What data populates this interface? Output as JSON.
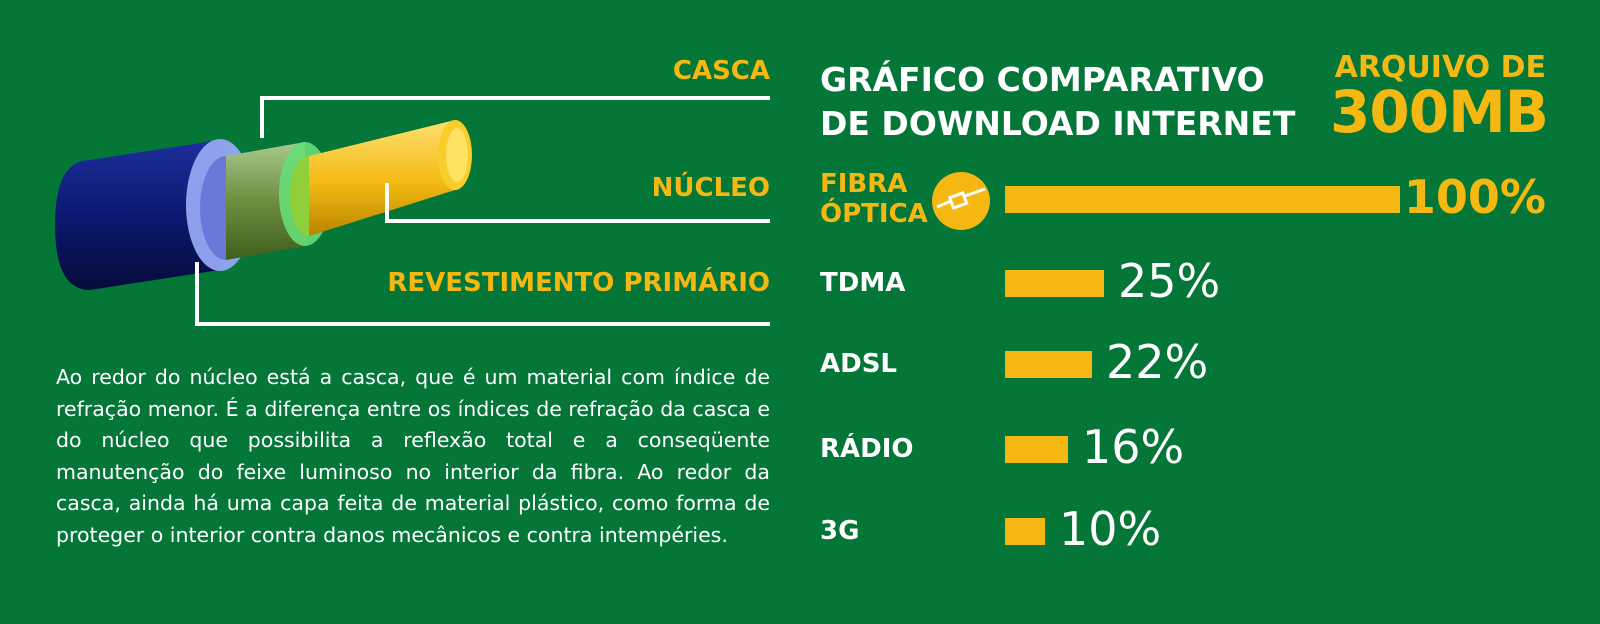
{
  "diagram": {
    "labels": {
      "casca": "CASCA",
      "nucleo": "NÚCLEO",
      "revestimento": "REVESTIMENTO PRIMÁRIO"
    },
    "description": "Ao redor do núcleo está a casca, que é um material com índice de refração menor. É a diferença entre os índices de refração da casca e do núcleo que possibilita a reflexão total e a conseqüente manutenção do feixe luminoso no interior da fibra. Ao redor da casca, ainda há uma capa feita de material plástico, como forma de proteger o interior contra danos mecânicos e contra intempéries."
  },
  "file_label": {
    "prefix": "ARQUIVO DE",
    "size": "300MB"
  },
  "colors": {
    "background": "#047637",
    "accent": "#f5b812",
    "text": "#ffffff"
  },
  "chart_data": {
    "type": "bar",
    "orientation": "horizontal",
    "title_line1": "GRÁFICO COMPARATIVO",
    "title_line2": "DE DOWNLOAD INTERNET",
    "categories": [
      "FIBRA ÓPTICA",
      "TDMA",
      "ADSL",
      "RÁDIO",
      "3G"
    ],
    "category_lines": [
      [
        "FIBRA",
        "ÓPTICA"
      ],
      [
        "TDMA"
      ],
      [
        "ADSL"
      ],
      [
        "RÁDIO"
      ],
      [
        "3G"
      ]
    ],
    "values": [
      100,
      25,
      22,
      16,
      10
    ],
    "value_labels": [
      "100%",
      "25%",
      "22%",
      "16%",
      "10%"
    ],
    "xlim": [
      0,
      100
    ],
    "grid": false,
    "legend": "none",
    "icon": "fiber-optic-icon"
  }
}
